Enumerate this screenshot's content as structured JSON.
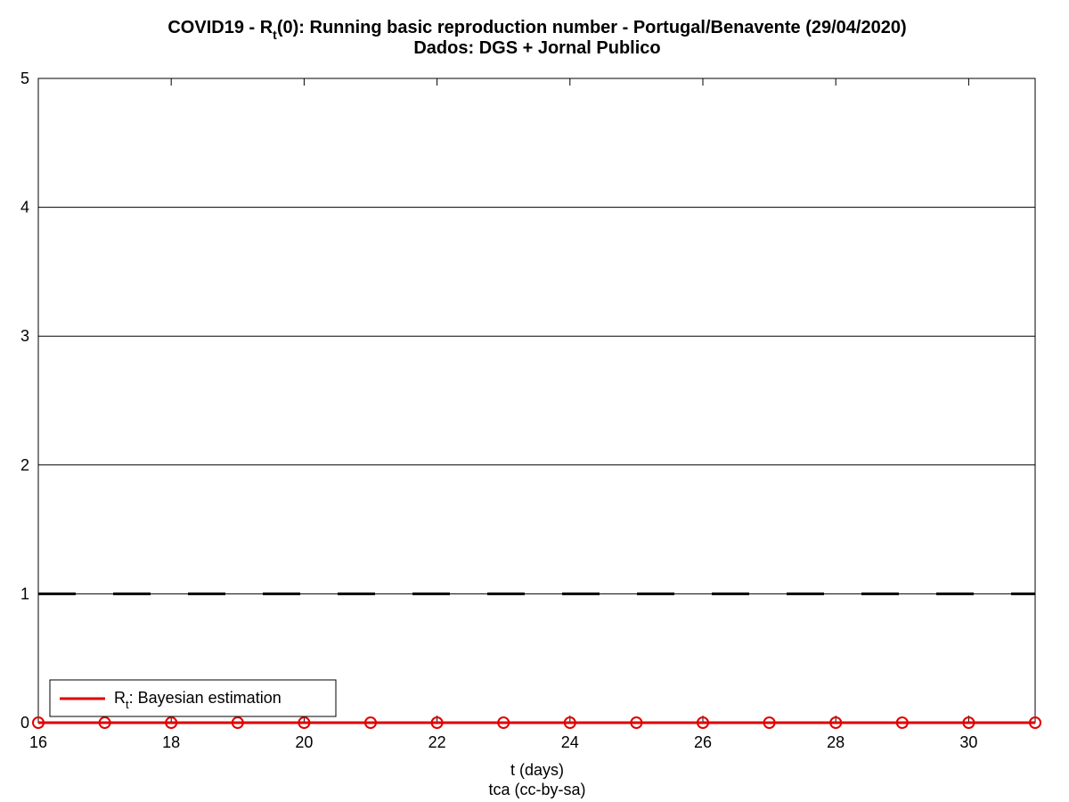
{
  "chart_data": {
    "type": "line",
    "title": [
      "COVID19 - R",
      "t",
      "(0): Running basic reproduction number - Portugal/Benavente (29/04/2020)"
    ],
    "subtitle": "Dados: DGS + Jornal Publico",
    "xlabel": "t (days)",
    "caption": "tca (cc-by-sa)",
    "x": [
      16,
      17,
      18,
      19,
      20,
      21,
      22,
      23,
      24,
      25,
      26,
      27,
      28,
      29,
      30,
      31
    ],
    "series": [
      {
        "name": [
          "R",
          "t",
          ": Bayesian estimation"
        ],
        "color": "#e00000",
        "values": [
          0,
          0,
          0,
          0,
          0,
          0,
          0,
          0,
          0,
          0,
          0,
          0,
          0,
          0,
          0,
          0
        ]
      }
    ],
    "reference_line": 1,
    "xlim": [
      16,
      31
    ],
    "ylim": [
      0,
      5
    ],
    "xticks": [
      16,
      18,
      20,
      22,
      24,
      26,
      28,
      30
    ],
    "yticks": [
      0,
      1,
      2,
      3,
      4,
      5
    ],
    "grid": true,
    "legend": "lower left"
  }
}
